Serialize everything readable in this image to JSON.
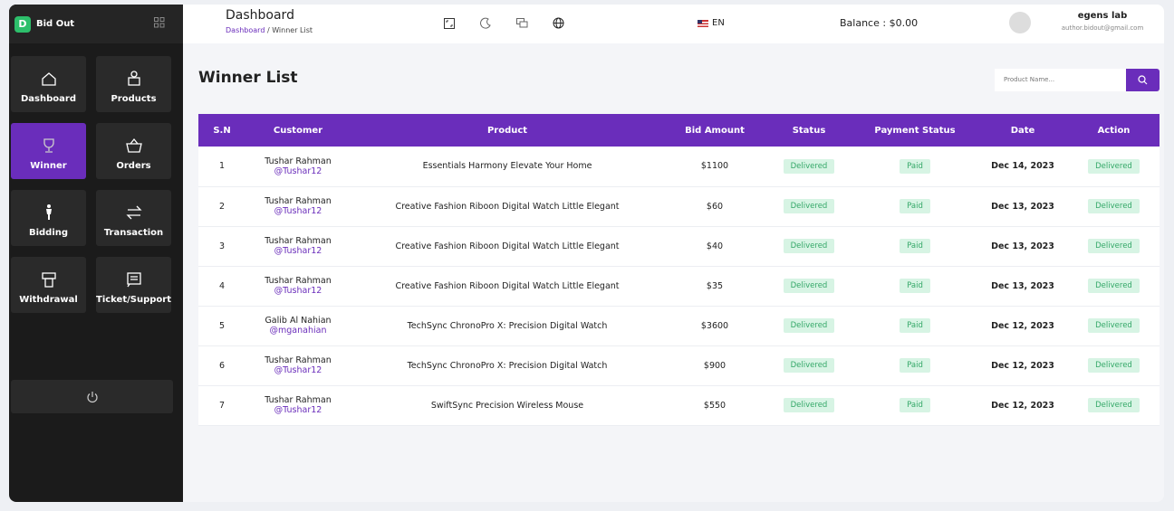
{
  "sidebar": {
    "brand": "Bid Out",
    "menu": [
      "Dashboard",
      "Products",
      "Winner",
      "Orders",
      "Bidding",
      "Transaction",
      "Withdrawal",
      "Ticket/Support"
    ]
  },
  "header": {
    "title": "Dashboard",
    "breadcrumb": [
      "Dashboard",
      "Winner List"
    ],
    "language": "EN",
    "balance": "Balance : $0.00",
    "user": {
      "name": "egens lab",
      "email": "author.bidout@gmail.com"
    }
  },
  "main": {
    "title": "Winner List",
    "search_placeholder": "Product Name..."
  },
  "table": {
    "headers": [
      "S.N",
      "Customer",
      "Product",
      "Bid Amount",
      "Status",
      "Payment Status",
      "Date",
      "Action"
    ],
    "rows": [
      [
        "1",
        "Tushar Rahman",
        "@Tushar12",
        "Essentials Harmony Elevate Your Home",
        "$1100",
        "Delivered",
        "Paid",
        "Dec 14, 2023",
        "Delivered"
      ],
      [
        "2",
        "Tushar Rahman",
        "@Tushar12",
        "Creative Fashion Riboon Digital Watch Little Elegant",
        "$60",
        "Delivered",
        "Paid",
        "Dec 13, 2023",
        "Delivered"
      ],
      [
        "3",
        "Tushar Rahman",
        "@Tushar12",
        "Creative Fashion Riboon Digital Watch Little Elegant",
        "$40",
        "Delivered",
        "Paid",
        "Dec 13, 2023",
        "Delivered"
      ],
      [
        "4",
        "Tushar Rahman",
        "@Tushar12",
        "Creative Fashion Riboon Digital Watch Little Elegant",
        "$35",
        "Delivered",
        "Paid",
        "Dec 13, 2023",
        "Delivered"
      ],
      [
        "5",
        "Galib Al Nahian",
        "@mganahian",
        "TechSync ChronoPro X: Precision Digital Watch",
        "$3600",
        "Delivered",
        "Paid",
        "Dec 12, 2023",
        "Delivered"
      ],
      [
        "6",
        "Tushar Rahman",
        "@Tushar12",
        "TechSync ChronoPro X: Precision Digital Watch",
        "$900",
        "Delivered",
        "Paid",
        "Dec 12, 2023",
        "Delivered"
      ],
      [
        "7",
        "Tushar Rahman",
        "@Tushar12",
        "SwiftSync Precision Wireless Mouse",
        "$550",
        "Delivered",
        "Paid",
        "Dec 12, 2023",
        "Delivered"
      ]
    ]
  }
}
